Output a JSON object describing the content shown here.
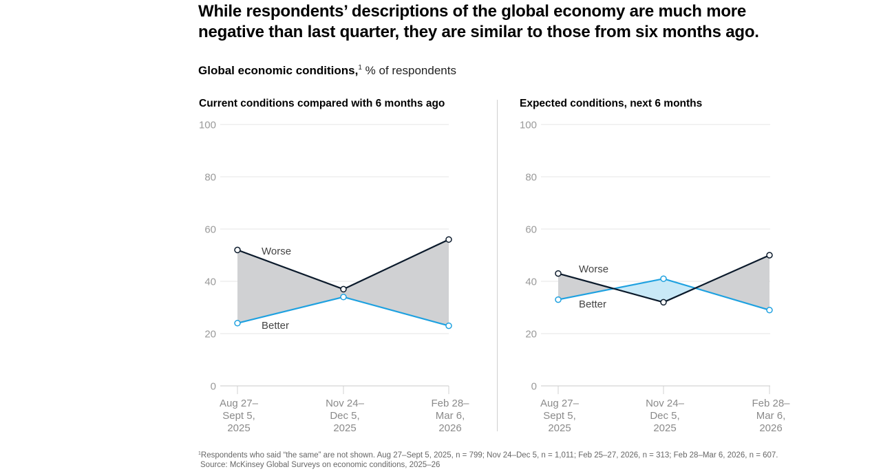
{
  "headline": "While respondents’ descriptions of the global economy are much more negative than last quarter, they are similar to those from six months ago.",
  "subtitle": {
    "bold": "Global economic conditions,",
    "footnote_marker": "1",
    "rest": " % of respondents"
  },
  "footnote": {
    "marker": "1",
    "text": "Respondents who said “the same” are not shown. Aug 27–Sept 5, 2025, n = 799; Nov 24–Dec 5, n = 1,011; Feb 25–27, 2026, n = 313; Feb 28–Mar 6, 2026, n = 607.",
    "source": "Source: McKinsey Global Surveys on economic conditions, 2025–26"
  },
  "colors": {
    "worse": "#0b1a2b",
    "better": "#1ea1e0",
    "worse_gap_fill": "#d0d1d3",
    "better_gap_fill": "#c9e9f7",
    "grid": "#e4e4e4"
  },
  "chart_data": [
    {
      "type": "line",
      "title": "Current conditions compared with 6 months ago",
      "categories": [
        [
          "Aug 27–",
          "Sept 5,",
          "2025"
        ],
        [
          "Nov 24–",
          "Dec 5,",
          "2025"
        ],
        [
          "Feb 28–",
          "Mar 6,",
          "2026"
        ]
      ],
      "series": [
        {
          "name": "Worse",
          "values": [
            52,
            37,
            56
          ]
        },
        {
          "name": "Better",
          "values": [
            24,
            34,
            23
          ]
        }
      ],
      "ylim": [
        0,
        100
      ],
      "yticks": [
        0,
        20,
        40,
        60,
        80,
        100
      ],
      "xlabel": "",
      "ylabel": "% of respondents",
      "grid": true,
      "fill_between": true
    },
    {
      "type": "line",
      "title": "Expected conditions, next 6 months",
      "categories": [
        [
          "Aug 27–",
          "Sept 5,",
          "2025"
        ],
        [
          "Nov 24–",
          "Dec 5,",
          "2025"
        ],
        [
          "Feb 28–",
          "Mar 6,",
          "2026"
        ]
      ],
      "series": [
        {
          "name": "Worse",
          "values": [
            43,
            32,
            50
          ]
        },
        {
          "name": "Better",
          "values": [
            33,
            41,
            29
          ]
        }
      ],
      "ylim": [
        0,
        100
      ],
      "yticks": [
        0,
        20,
        40,
        60,
        80,
        100
      ],
      "xlabel": "",
      "ylabel": "% of respondents",
      "grid": true,
      "fill_between": true
    }
  ]
}
